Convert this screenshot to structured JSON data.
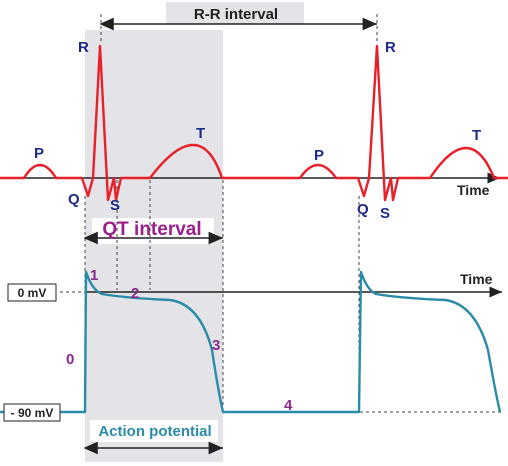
{
  "colors": {
    "ecg": "#e8202a",
    "action_potential": "#2a8ca8",
    "wave_label": "#1f2a8a",
    "phase_label": "#8a2a8a",
    "qt_label": "#9a1f8a",
    "shade": "#e3e3e8",
    "axis": "#222222"
  },
  "labels": {
    "rr_interval": "R-R interval",
    "qt_interval": "QT interval",
    "action_potential": "Action potential",
    "time_top": "Time",
    "time_mid": "Time",
    "zero_mv": "0 mV",
    "minus90_mv": "- 90 mV"
  },
  "ecg_waves": {
    "p1": "P",
    "q1": "Q",
    "r1": "R",
    "s1": "S",
    "t1": "T",
    "p2": "P",
    "q2": "Q",
    "r2": "R",
    "s2": "S",
    "t2": "T"
  },
  "phases": {
    "p0": "0",
    "p1": "1",
    "p2": "2",
    "p3": "3",
    "p4": "4"
  }
}
